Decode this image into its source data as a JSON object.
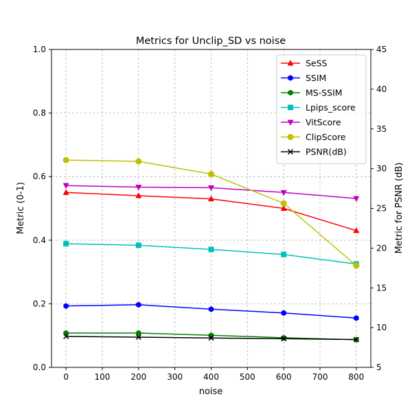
{
  "chart_data": {
    "type": "line",
    "title": "Metrics for Unclip_SD vs noise",
    "xlabel": "noise",
    "ylabel": "Metric (0-1)",
    "y2label": "Metric for PSNR (dB)",
    "xlim": [
      -40,
      840
    ],
    "ylim": [
      0,
      1
    ],
    "y2lim": [
      5,
      45
    ],
    "xticks": [
      0,
      100,
      200,
      300,
      400,
      500,
      600,
      700,
      800
    ],
    "yticks": [
      "0.0",
      "0.2",
      "0.4",
      "0.6",
      "0.8",
      "1.0"
    ],
    "y2ticks": [
      5,
      10,
      15,
      20,
      25,
      30,
      35,
      40,
      45
    ],
    "grid": true,
    "legend_position": "top-right",
    "x": [
      0,
      200,
      400,
      600,
      800
    ],
    "series": [
      {
        "name": "SeSS",
        "marker": "triangle-up",
        "color": "#ff0000",
        "axis": "left",
        "values": [
          0.55,
          0.54,
          0.53,
          0.5,
          0.43
        ]
      },
      {
        "name": "SSIM",
        "marker": "hexagon",
        "color": "#0000ff",
        "axis": "left",
        "values": [
          0.193,
          0.197,
          0.183,
          0.171,
          0.155
        ]
      },
      {
        "name": "MS-SSIM",
        "marker": "hexagon",
        "color": "#008000",
        "axis": "left",
        "values": [
          0.108,
          0.108,
          0.101,
          0.093,
          0.087
        ]
      },
      {
        "name": "Lpips_score",
        "marker": "square",
        "color": "#00bfbf",
        "axis": "left",
        "values": [
          0.389,
          0.384,
          0.371,
          0.355,
          0.325
        ]
      },
      {
        "name": "VitScore",
        "marker": "triangle-down",
        "color": "#bf00bf",
        "axis": "left",
        "values": [
          0.572,
          0.567,
          0.565,
          0.55,
          0.531
        ]
      },
      {
        "name": "ClipScore",
        "marker": "circle",
        "color": "#bfbf00",
        "axis": "left",
        "values": [
          0.652,
          0.648,
          0.608,
          0.516,
          0.32
        ]
      },
      {
        "name": "PSNR(dB)",
        "marker": "x",
        "color": "#000000",
        "axis": "right",
        "values": [
          8.9,
          8.8,
          8.7,
          8.6,
          8.5
        ]
      }
    ]
  }
}
